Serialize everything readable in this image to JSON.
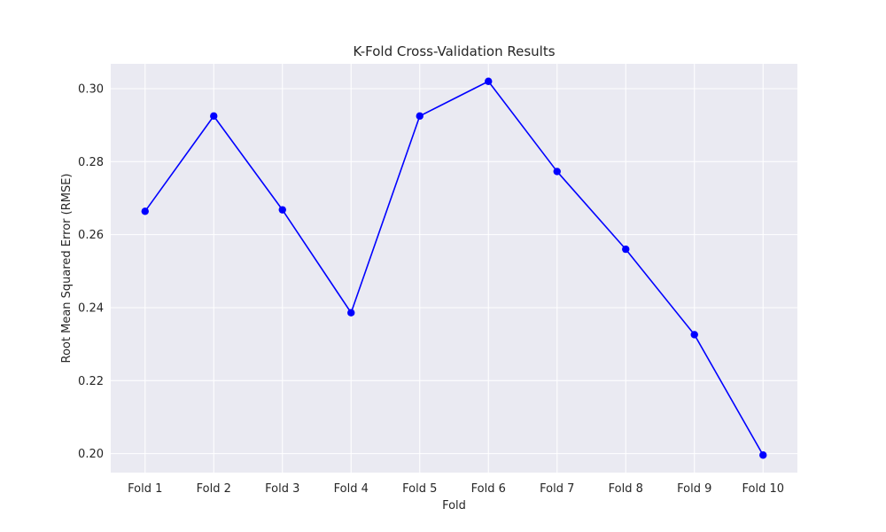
{
  "chart_data": {
    "type": "line",
    "title": "K-Fold Cross-Validation Results",
    "xlabel": "Fold",
    "ylabel": "Root Mean Squared Error (RMSE)",
    "categories": [
      "Fold 1",
      "Fold 2",
      "Fold 3",
      "Fold 4",
      "Fold 5",
      "Fold 6",
      "Fold 7",
      "Fold 8",
      "Fold 9",
      "Fold 10"
    ],
    "series": [
      {
        "values": [
          0.2664,
          0.2925,
          0.2668,
          0.2386,
          0.2925,
          0.302,
          0.2773,
          0.256,
          0.2326,
          0.1996
        ],
        "color": "#0000ff",
        "marker": "circle"
      }
    ],
    "ylim": [
      0.1948,
      0.3068
    ],
    "yticks": [
      0.2,
      0.22,
      0.24,
      0.26,
      0.28,
      0.3
    ],
    "ytick_labels": [
      "0.20",
      "0.22",
      "0.24",
      "0.26",
      "0.28",
      "0.30"
    ],
    "grid": true,
    "plot_background": "#eaeaf2",
    "grid_color": "#ffffff"
  }
}
